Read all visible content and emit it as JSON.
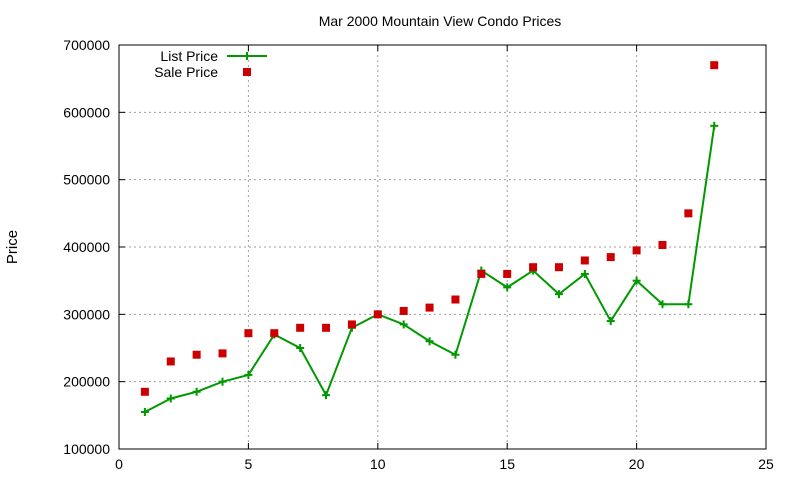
{
  "chart_data": {
    "type": "line",
    "title": "Mar 2000 Mountain View Condo Prices",
    "xlabel": "",
    "ylabel": "Price",
    "xlim": [
      0,
      25
    ],
    "ylim": [
      100000,
      700000
    ],
    "x_ticks": [
      0,
      5,
      10,
      15,
      20,
      25
    ],
    "y_ticks": [
      100000,
      200000,
      300000,
      400000,
      500000,
      600000,
      700000
    ],
    "grid": true,
    "legend_position": "top-left",
    "x": [
      1,
      2,
      3,
      4,
      5,
      6,
      7,
      8,
      9,
      10,
      11,
      12,
      13,
      14,
      15,
      16,
      17,
      18,
      19,
      20,
      21,
      22,
      23
    ],
    "series": [
      {
        "name": "List Price",
        "style": "line-plus",
        "color": "#009900",
        "values": [
          155000,
          175000,
          185000,
          200000,
          210000,
          270000,
          250000,
          180000,
          280000,
          300000,
          285000,
          260000,
          240000,
          365000,
          340000,
          365000,
          330000,
          360000,
          290000,
          350000,
          315000,
          315000,
          580000
        ]
      },
      {
        "name": "Sale Price",
        "style": "square-points",
        "color": "#cc0000",
        "values": [
          185000,
          230000,
          240000,
          242000,
          272000,
          272000,
          280000,
          280000,
          285000,
          300000,
          305000,
          310000,
          322000,
          360000,
          360000,
          370000,
          370000,
          380000,
          385000,
          395000,
          403000,
          450000,
          670000
        ]
      }
    ]
  }
}
